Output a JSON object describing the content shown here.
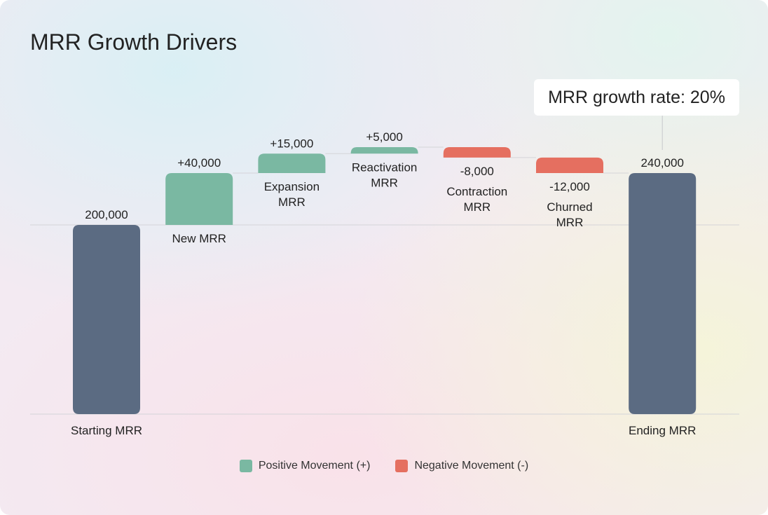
{
  "title": "MRR Growth Drivers",
  "callout": "MRR growth rate: 20%",
  "colors": {
    "total": "#5b6b82",
    "positive": "#7ab8a2",
    "negative": "#e56f60",
    "grid": "#d4d4d8"
  },
  "chart_data": {
    "type": "waterfall",
    "title": "MRR Growth Drivers",
    "ylim": [
      54000,
      270000
    ],
    "categories": [
      "Starting MRR",
      "New MRR",
      "Expansion MRR",
      "Reactivation MRR",
      "Contraction MRR",
      "Churned MRR",
      "Ending MRR"
    ],
    "category_lines": [
      [
        "Starting MRR"
      ],
      [
        "New MRR"
      ],
      [
        "Expansion",
        "MRR"
      ],
      [
        "Reactivation",
        "MRR"
      ],
      [
        "Contraction",
        "MRR"
      ],
      [
        "Churned",
        "MRR"
      ],
      [
        "Ending MRR"
      ]
    ],
    "values": [
      200000,
      40000,
      15000,
      5000,
      -8000,
      -12000,
      240000
    ],
    "kinds": [
      "total",
      "positive",
      "positive",
      "positive",
      "negative",
      "negative",
      "total"
    ],
    "value_labels": [
      "200,000",
      "+40,000",
      "+15,000",
      "+5,000",
      "-8,000",
      "-12,000",
      "240,000"
    ],
    "legend": [
      {
        "label": "Positive Movement (+)",
        "kind": "positive"
      },
      {
        "label": "Negative Movement (-)",
        "kind": "negative"
      }
    ]
  }
}
